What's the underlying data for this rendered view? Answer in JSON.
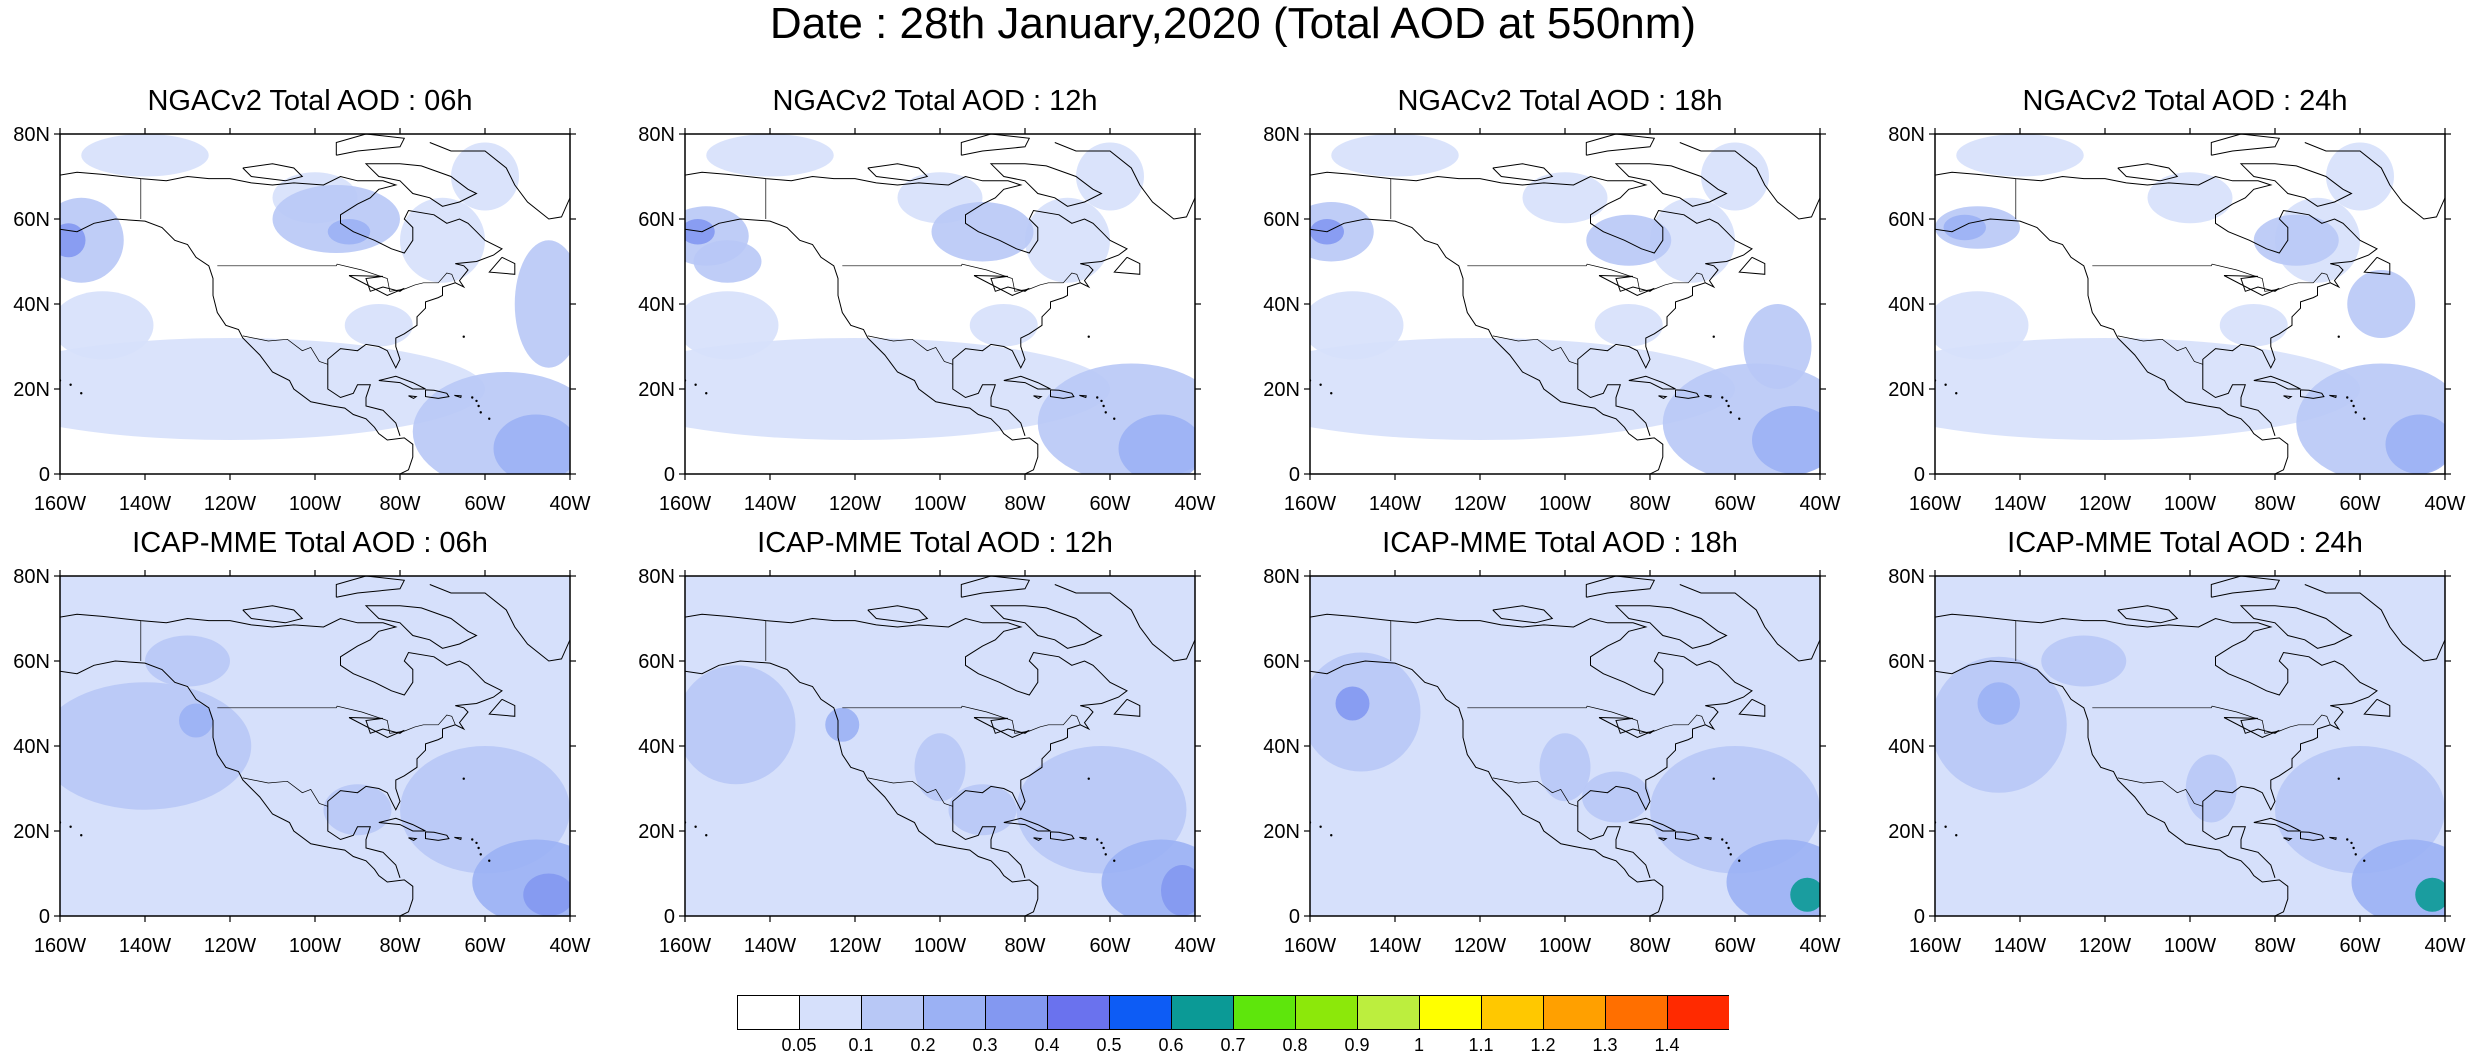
{
  "page": {
    "title": "Date : 28th January,2020 (Total AOD at 550nm)"
  },
  "axes": {
    "lat_labels": [
      "80N",
      "60N",
      "40N",
      "20N",
      "0"
    ],
    "lon_labels": [
      "160W",
      "140W",
      "120W",
      "100W",
      "80W",
      "60W",
      "40W"
    ],
    "lat_range": [
      0,
      80
    ],
    "lon_range": [
      -160,
      -40
    ]
  },
  "panels": [
    {
      "title": "NGACv2 Total AOD : 06h",
      "model": "NGACv2",
      "hour": 6
    },
    {
      "title": "NGACv2 Total AOD : 12h",
      "model": "NGACv2",
      "hour": 12
    },
    {
      "title": "NGACv2 Total AOD : 18h",
      "model": "NGACv2",
      "hour": 18
    },
    {
      "title": "NGACv2 Total AOD : 24h",
      "model": "NGACv2",
      "hour": 24
    },
    {
      "title": "ICAP-MME Total AOD : 06h",
      "model": "ICAP-MME",
      "hour": 6
    },
    {
      "title": "ICAP-MME Total AOD : 12h",
      "model": "ICAP-MME",
      "hour": 12
    },
    {
      "title": "ICAP-MME Total AOD : 18h",
      "model": "ICAP-MME",
      "hour": 18
    },
    {
      "title": "ICAP-MME Total AOD : 24h",
      "model": "ICAP-MME",
      "hour": 24
    }
  ],
  "colorbar": {
    "colors": [
      "#ffffff",
      "#d6e0fb",
      "#b8c8f6",
      "#9bb1f4",
      "#8398f1",
      "#6a72ee",
      "#0d5cf5",
      "#0b9a96",
      "#5ee60c",
      "#8ce80a",
      "#bcee3e",
      "#ffff00",
      "#ffc800",
      "#ffa000",
      "#ff6f00",
      "#ff2a00"
    ],
    "labels": [
      "0.05",
      "0.1",
      "0.2",
      "0.3",
      "0.4",
      "0.5",
      "0.6",
      "0.7",
      "0.8",
      "0.9",
      "1",
      "1.1",
      "1.2",
      "1.3",
      "1.4"
    ]
  }
}
